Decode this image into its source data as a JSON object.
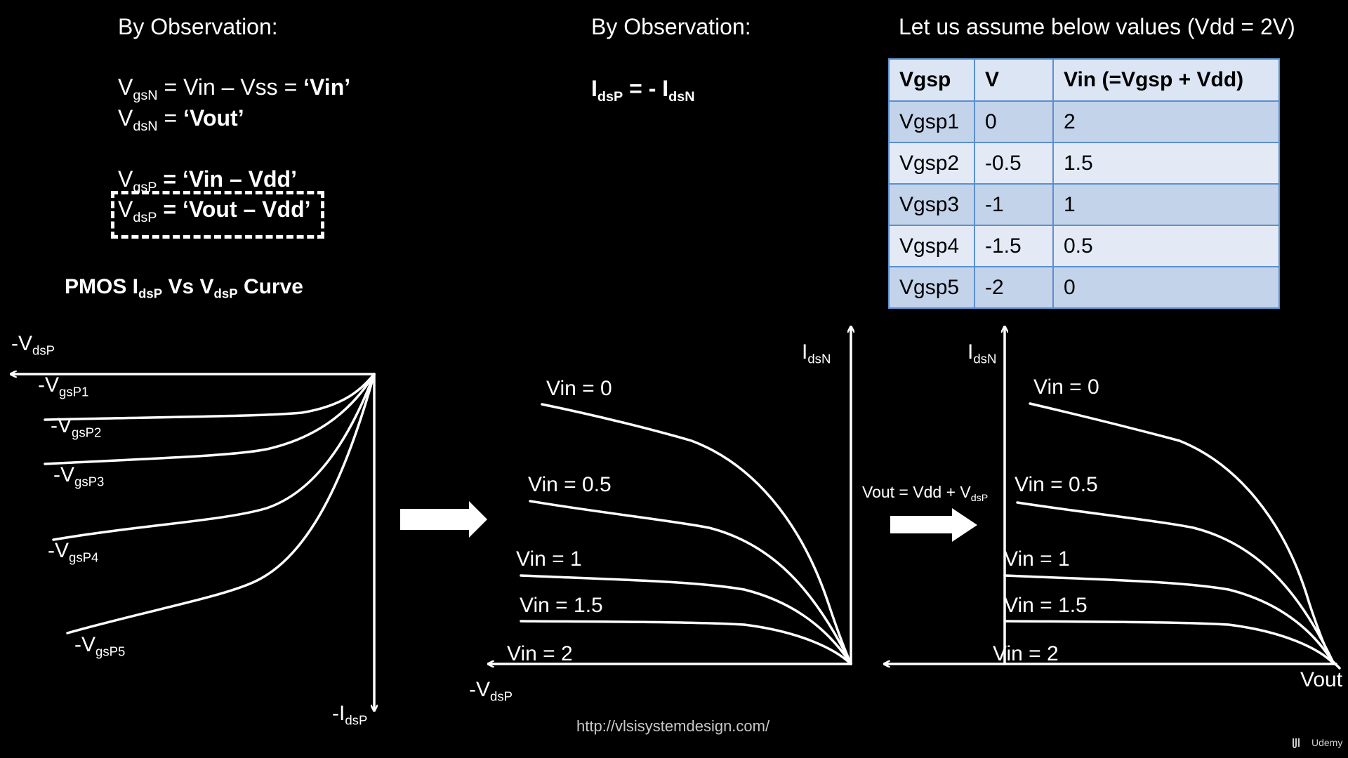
{
  "left_heading": "By Observation:",
  "mid_heading": "By Observation:",
  "right_heading": "Let us assume below values (Vdd = 2V)",
  "equations": {
    "eq1": {
      "v": "V",
      "sub": "gsN",
      "rest_plain": " = Vin – Vss = ",
      "rest_bold": "‘Vin’"
    },
    "eq2": {
      "v": "V",
      "sub": "dsN",
      "rest_plain": " = ",
      "rest_bold": "‘Vout’"
    },
    "eq3": {
      "v": "V",
      "sub": "gsP",
      "rest_plain": " = ",
      "rest_bold": "‘Vin – Vdd’"
    },
    "eq4": {
      "v": "V",
      "sub": "dsP",
      "rest_plain": " = ",
      "rest_bold": "‘Vout – Vdd’"
    },
    "mid": {
      "a": "I",
      "a_sub": "dsP",
      "mid": " = - ",
      "b": "I",
      "b_sub": "dsN"
    }
  },
  "pmos_title": {
    "t1": "PMOS I",
    "s1": "dsP",
    "t2": " Vs V",
    "s2": "dsP",
    "t3": " Curve"
  },
  "table": {
    "headers": [
      "Vgsp",
      "V",
      "Vin (=Vgsp + Vdd)"
    ],
    "rows": [
      [
        "Vgsp1",
        "0",
        "2"
      ],
      [
        "Vgsp2",
        "-0.5",
        "1.5"
      ],
      [
        "Vgsp3",
        "-1",
        "1"
      ],
      [
        "Vgsp4",
        "-1.5",
        "0.5"
      ],
      [
        "Vgsp5",
        "-2",
        "0"
      ]
    ]
  },
  "left_graph": {
    "x_axis": {
      "t": "-V",
      "s": "dsP"
    },
    "y_axis": {
      "t": "-I",
      "s": "dsP"
    },
    "curves": [
      {
        "t": "-V",
        "s": "gsP1"
      },
      {
        "t": "-V",
        "s": "gsP2"
      },
      {
        "t": "-V",
        "s": "gsP3"
      },
      {
        "t": "-V",
        "s": "gsP4"
      },
      {
        "t": "-V",
        "s": "gsP5"
      }
    ]
  },
  "middle_graph": {
    "y_axis": {
      "t": "I",
      "s": "dsN"
    },
    "x_axis": {
      "t": "-V",
      "s": "dsP"
    },
    "curves": [
      "Vin = 0",
      "Vin = 0.5",
      "Vin = 1",
      "Vin = 1.5",
      "Vin = 2"
    ]
  },
  "transform_label": {
    "t": "Vout = Vdd + V",
    "s": "dsP"
  },
  "right_graph": {
    "y_axis": {
      "t": "I",
      "s": "dsN"
    },
    "x_axis": "Vout",
    "curves": [
      "Vin = 0",
      "Vin = 0.5",
      "Vin = 1",
      "Vin = 1.5",
      "Vin = 2"
    ]
  },
  "url": "http://vlsisystemdesign.com/",
  "brand": "Udemy",
  "colors": {
    "background": "#000000",
    "foreground": "#ffffff",
    "table_border": "#5b8fd0"
  }
}
